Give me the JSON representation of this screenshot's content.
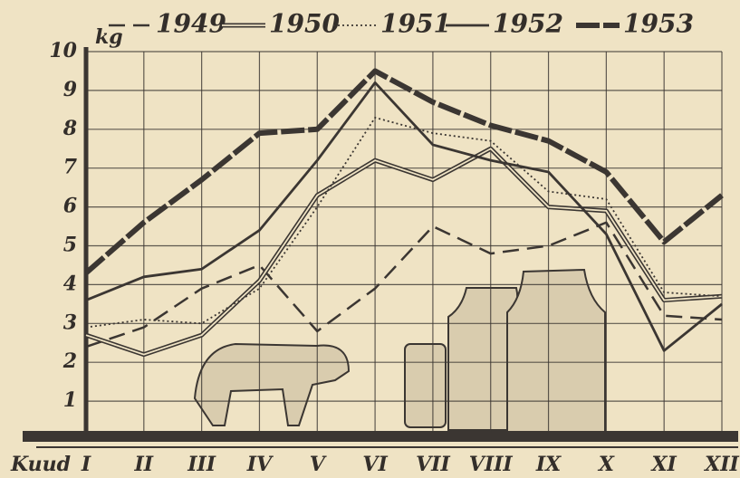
{
  "chart_data": {
    "type": "line",
    "x_label": "Kuud",
    "y_label": "kg",
    "categories": [
      "I",
      "II",
      "III",
      "IV",
      "V",
      "VI",
      "VII",
      "VIII",
      "IX",
      "X",
      "XI",
      "XII"
    ],
    "ylim": [
      0,
      10
    ],
    "yticks": [
      1,
      2,
      3,
      4,
      5,
      6,
      7,
      8,
      9,
      10
    ],
    "grid": true,
    "series": [
      {
        "name": "1949",
        "color": "#3b3632",
        "line_style": "dashed",
        "values": [
          2.4,
          2.9,
          3.9,
          4.5,
          2.8,
          3.9,
          5.5,
          4.8,
          5.0,
          5.6,
          3.2,
          3.1
        ]
      },
      {
        "name": "1950",
        "color": "#3b3632",
        "line_style": "double",
        "values": [
          2.7,
          2.2,
          2.7,
          4.1,
          6.3,
          7.2,
          6.7,
          7.5,
          6.0,
          5.9,
          3.6,
          3.7
        ]
      },
      {
        "name": "1951",
        "color": "#3b3632",
        "line_style": "dotted",
        "values": [
          2.9,
          3.1,
          3.0,
          3.9,
          6.0,
          8.3,
          7.9,
          7.7,
          6.4,
          6.2,
          3.8,
          3.7
        ]
      },
      {
        "name": "1952",
        "color": "#3b3632",
        "line_style": "solid",
        "values": [
          3.6,
          4.2,
          4.4,
          5.4,
          7.2,
          9.2,
          7.6,
          7.2,
          6.9,
          5.3,
          2.3,
          3.5
        ]
      },
      {
        "name": "1953",
        "color": "#3b3632",
        "line_style": "thick-dashed",
        "values": [
          4.3,
          5.6,
          6.7,
          7.9,
          8.0,
          9.5,
          8.7,
          8.1,
          7.7,
          6.9,
          5.1,
          6.3
        ]
      }
    ]
  }
}
